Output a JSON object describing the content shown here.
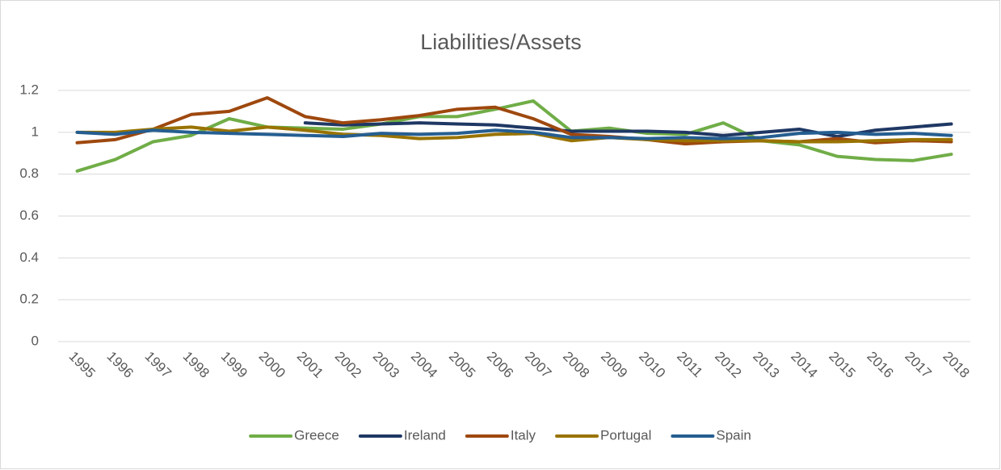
{
  "chart_data": {
    "type": "line",
    "title": "Liabilities/Assets",
    "categories": [
      "1995",
      "1996",
      "1997",
      "1998",
      "1999",
      "2000",
      "2001",
      "2002",
      "2003",
      "2004",
      "2005",
      "2006",
      "2007",
      "2008",
      "2009",
      "2010",
      "2011",
      "2012",
      "2013",
      "2014",
      "2015",
      "2016",
      "2017",
      "2018"
    ],
    "series": [
      {
        "name": "Greece",
        "color": "#70ad47",
        "values": [
          0.815,
          0.87,
          0.955,
          0.985,
          1.065,
          1.025,
          1.02,
          1.015,
          1.04,
          1.075,
          1.075,
          1.11,
          1.15,
          1.005,
          1.02,
          0.995,
          0.99,
          1.045,
          0.96,
          0.94,
          0.885,
          0.87,
          0.865,
          0.895
        ]
      },
      {
        "name": "Ireland",
        "color": "#1f3864",
        "values": [
          null,
          null,
          null,
          null,
          null,
          null,
          1.045,
          1.035,
          1.04,
          1.045,
          1.04,
          1.035,
          1.02,
          1.005,
          1.005,
          1.005,
          1.0,
          0.985,
          1.0,
          1.015,
          0.98,
          1.01,
          1.025,
          1.04
        ]
      },
      {
        "name": "Italy",
        "color": "#9e480e",
        "values": [
          0.95,
          0.965,
          1.015,
          1.085,
          1.1,
          1.165,
          1.075,
          1.045,
          1.06,
          1.08,
          1.11,
          1.12,
          1.065,
          0.99,
          0.98,
          0.965,
          0.945,
          0.955,
          0.96,
          0.955,
          0.97,
          0.95,
          0.96,
          0.955
        ]
      },
      {
        "name": "Portugal",
        "color": "#997300",
        "values": [
          1.0,
          1.0,
          1.015,
          1.025,
          1.005,
          1.025,
          1.01,
          0.99,
          0.985,
          0.97,
          0.975,
          0.99,
          0.995,
          0.96,
          0.975,
          0.965,
          0.96,
          0.96,
          0.96,
          0.955,
          0.955,
          0.96,
          0.965,
          0.965
        ]
      },
      {
        "name": "Spain",
        "color": "#255e91",
        "values": [
          1.0,
          0.99,
          1.01,
          1.0,
          0.995,
          0.99,
          0.985,
          0.98,
          0.995,
          0.99,
          0.995,
          1.01,
          1.0,
          0.975,
          0.975,
          0.97,
          0.975,
          0.97,
          0.975,
          0.995,
          1.0,
          0.99,
          0.995,
          0.985
        ]
      }
    ],
    "ylim": [
      0,
      1.2
    ],
    "yticks": [
      0,
      0.2,
      0.4,
      0.6,
      0.8,
      1,
      1.2
    ],
    "grid": true
  }
}
